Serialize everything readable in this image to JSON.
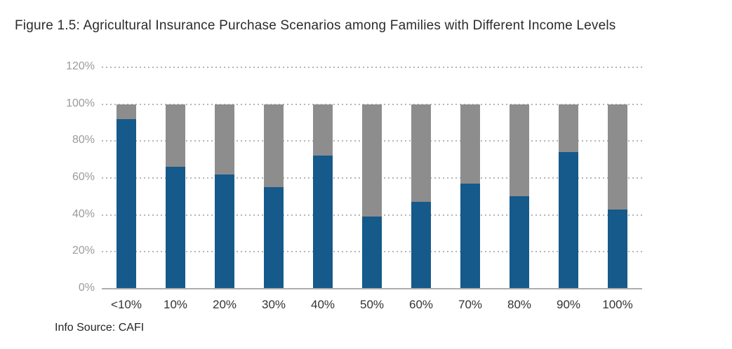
{
  "title": "Figure 1.5: Agricultural Insurance Purchase Scenarios among Families with Different Income Levels",
  "source_note": "Info Source: CAFI",
  "colors": {
    "bar_blue": "#155a8a",
    "bar_gray": "#8d8d8d",
    "gridline": "#b5b5b5",
    "y_tick_label": "#9b9b9b",
    "x_tick_label": "#333333"
  },
  "chart_data": {
    "type": "bar",
    "stacked": true,
    "title": "Figure 1.5: Agricultural Insurance Purchase Scenarios among Families with Different Income Levels",
    "categories": [
      "<10%",
      "10%",
      "20%",
      "30%",
      "40%",
      "50%",
      "60%",
      "70%",
      "80%",
      "90%",
      "100%"
    ],
    "series": [
      {
        "name": "series-blue-bottom",
        "color": "#155a8a",
        "values": [
          92,
          66,
          62,
          55,
          72,
          39,
          47,
          57,
          50,
          74,
          43
        ]
      },
      {
        "name": "series-gray-top",
        "color": "#8d8d8d",
        "values": [
          8,
          34,
          38,
          45,
          28,
          61,
          53,
          43,
          50,
          26,
          57
        ]
      }
    ],
    "xlabel": "",
    "ylabel": "",
    "ylim": [
      0,
      120
    ],
    "yticks": [
      0,
      20,
      40,
      60,
      80,
      100,
      120
    ],
    "ytick_labels": [
      "0%",
      "20%",
      "40%",
      "60%",
      "80%",
      "100%",
      "120%"
    ],
    "grid": "horizontal-dotted",
    "legend": "none"
  }
}
